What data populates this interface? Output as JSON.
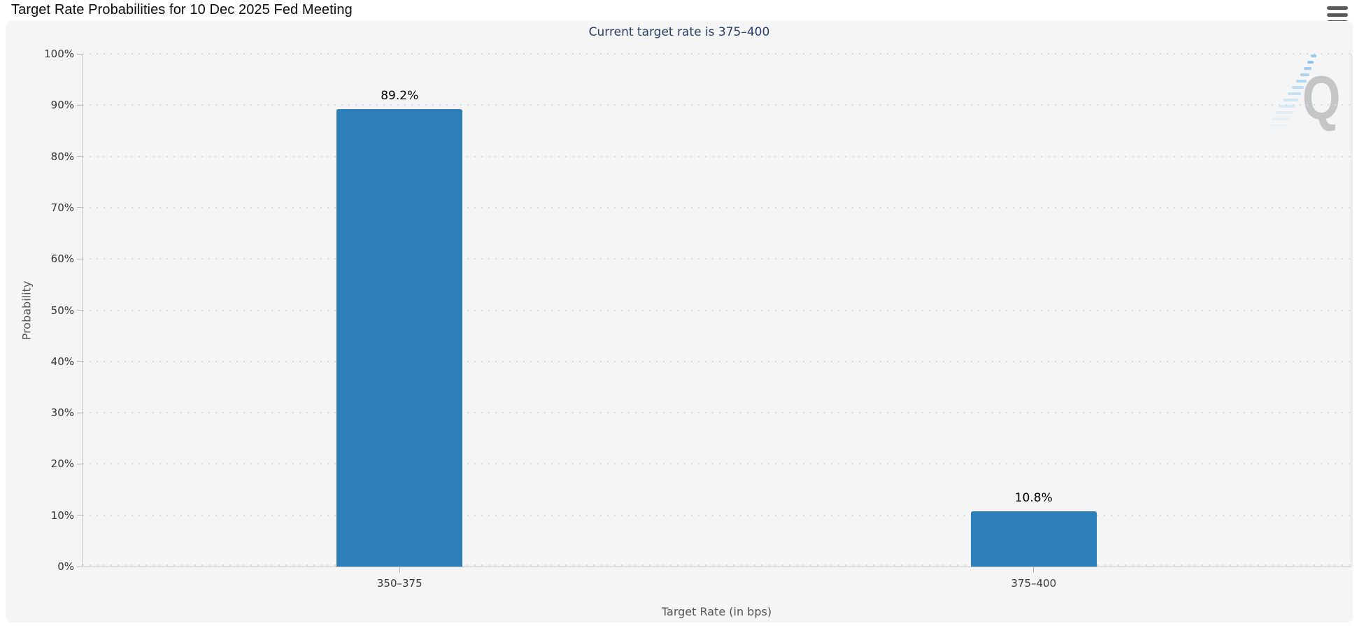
{
  "header": {
    "menu_icon": "hamburger-menu-icon"
  },
  "watermark": {
    "text": "Q"
  },
  "chart_data": {
    "type": "bar",
    "title": "Target Rate Probabilities for 10 Dec 2025 Fed Meeting",
    "subtitle": "Current target rate is 375–400",
    "categories": [
      "350–375",
      "375–400"
    ],
    "values": [
      89.2,
      10.8
    ],
    "data_labels": [
      "89.2%",
      "10.8%"
    ],
    "xlabel": "Target Rate (in bps)",
    "ylabel": "Probability",
    "ylim": [
      0,
      100
    ],
    "ytick_step": 10,
    "ytick_labels": [
      "0%",
      "10%",
      "20%",
      "30%",
      "40%",
      "50%",
      "60%",
      "70%",
      "80%",
      "90%",
      "100%"
    ],
    "grid": "horizontal-dotted",
    "legend_position": "none",
    "bar_color": "#2c7fb9",
    "subtitle_color": "#2a3f66",
    "background_color": "#f5f5f6"
  }
}
